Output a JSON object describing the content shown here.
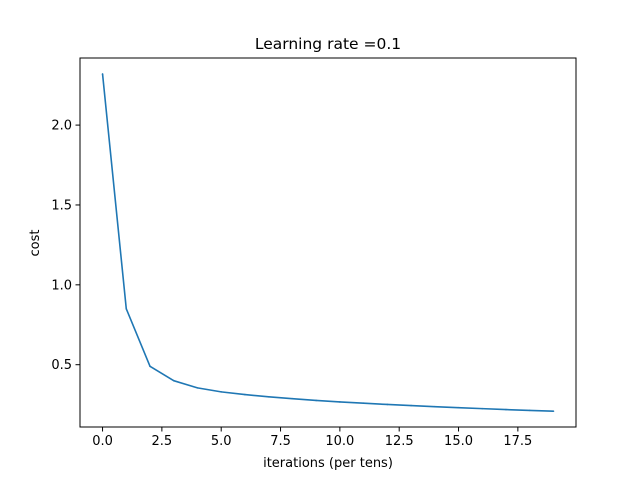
{
  "chart_data": {
    "type": "line",
    "title": "Learning rate =0.1",
    "xlabel": "iterations (per tens)",
    "ylabel": "cost",
    "xlim": [
      -0.95,
      19.95
    ],
    "ylim": [
      0.11,
      2.42
    ],
    "xticks": [
      0.0,
      2.5,
      5.0,
      7.5,
      10.0,
      12.5,
      15.0,
      17.5
    ],
    "xtick_labels": [
      "0.0",
      "2.5",
      "5.0",
      "7.5",
      "10.0",
      "12.5",
      "15.0",
      "17.5"
    ],
    "yticks": [
      0.5,
      1.0,
      1.5,
      2.0
    ],
    "ytick_labels": [
      "0.5",
      "1.0",
      "1.5",
      "2.0"
    ],
    "grid": false,
    "series": [
      {
        "color": "#1f77b4",
        "x": [
          0,
          1,
          2,
          3,
          4,
          5,
          6,
          7,
          8,
          9,
          10,
          11,
          12,
          13,
          14,
          15,
          16,
          17,
          18,
          19
        ],
        "values": [
          2.32,
          0.85,
          0.49,
          0.4,
          0.355,
          0.33,
          0.313,
          0.299,
          0.287,
          0.276,
          0.267,
          0.259,
          0.251,
          0.244,
          0.237,
          0.231,
          0.225,
          0.219,
          0.214,
          0.209
        ]
      }
    ]
  }
}
